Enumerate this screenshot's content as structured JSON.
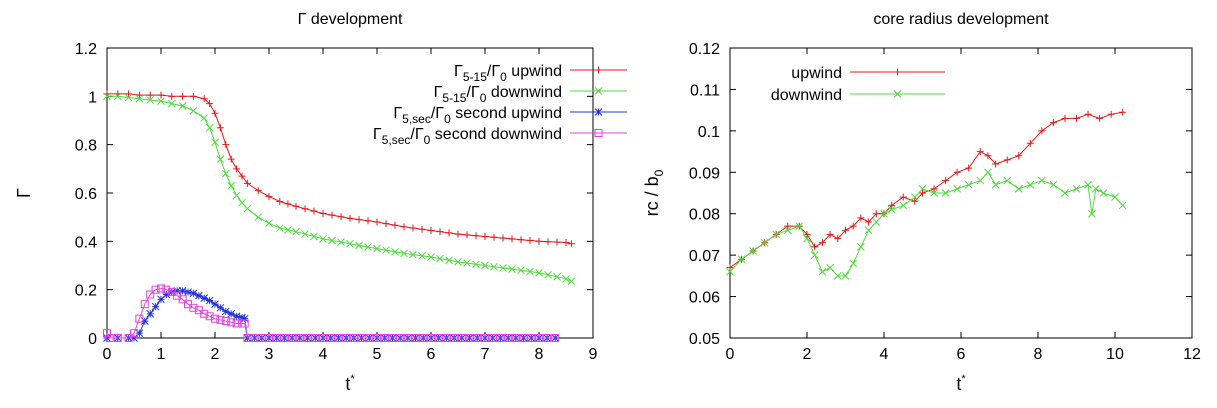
{
  "chart_data": [
    {
      "type": "line",
      "title": "Γ development",
      "xlabel": "t*",
      "ylabel": "Γ",
      "xlim": [
        0,
        9
      ],
      "ylim": [
        0,
        1.2
      ],
      "xticks": [
        "0",
        "1",
        "2",
        "3",
        "4",
        "5",
        "6",
        "7",
        "8",
        "9"
      ],
      "yticks": [
        "0",
        "0.2",
        "0.4",
        "0.6",
        "0.8",
        "1",
        "1.2"
      ],
      "legend_position": "top-right",
      "series": [
        {
          "name": "Γ5-15/Γ0 upwind",
          "name_parts": {
            "main": "Γ",
            "sub": "5-15",
            "slash": "/Γ",
            "sub2": "0",
            "suffix": " upwind"
          },
          "color": "#e41a1c",
          "marker": "plus",
          "x": [
            0,
            0.2,
            0.4,
            0.6,
            0.8,
            1.0,
            1.2,
            1.4,
            1.6,
            1.8,
            1.9,
            2.0,
            2.1,
            2.2,
            2.3,
            2.4,
            2.5,
            2.6,
            2.8,
            3.0,
            3.2,
            3.5,
            4.0,
            4.5,
            5.0,
            5.5,
            6.0,
            6.5,
            7.0,
            7.5,
            8.0,
            8.5,
            8.6
          ],
          "y": [
            1.01,
            1.01,
            1.01,
            1.005,
            1.005,
            1.005,
            1.0,
            1.0,
            1.0,
            0.99,
            0.97,
            0.93,
            0.87,
            0.8,
            0.74,
            0.7,
            0.67,
            0.64,
            0.61,
            0.585,
            0.565,
            0.545,
            0.515,
            0.495,
            0.48,
            0.46,
            0.445,
            0.43,
            0.42,
            0.41,
            0.4,
            0.395,
            0.39
          ]
        },
        {
          "name": "Γ5-15/Γ0 downwind",
          "name_parts": {
            "main": "Γ",
            "sub": "5-15",
            "slash": "/Γ",
            "sub2": "0",
            "suffix": " downwind"
          },
          "color": "#4ddd3c",
          "marker": "cross",
          "x": [
            0,
            0.2,
            0.4,
            0.6,
            0.8,
            1.0,
            1.2,
            1.4,
            1.6,
            1.8,
            1.9,
            2.0,
            2.1,
            2.2,
            2.3,
            2.4,
            2.5,
            2.6,
            2.8,
            3.0,
            3.2,
            3.5,
            4.0,
            4.5,
            5.0,
            5.5,
            6.0,
            6.5,
            7.0,
            7.5,
            8.0,
            8.5,
            8.6
          ],
          "y": [
            1.0,
            1.0,
            0.995,
            0.99,
            0.985,
            0.98,
            0.97,
            0.96,
            0.94,
            0.91,
            0.87,
            0.81,
            0.74,
            0.68,
            0.63,
            0.59,
            0.56,
            0.535,
            0.5,
            0.475,
            0.455,
            0.44,
            0.41,
            0.39,
            0.37,
            0.35,
            0.335,
            0.315,
            0.3,
            0.285,
            0.27,
            0.245,
            0.235
          ]
        },
        {
          "name": "Γ5,sec/Γ0 second upwind",
          "name_parts": {
            "main": "Γ",
            "sub": "5,sec",
            "slash": "/Γ",
            "sub2": "0",
            "suffix": " second upwind"
          },
          "color": "#2033d6",
          "marker": "star",
          "x": [
            0,
            0.2,
            0.4,
            0.5,
            0.6,
            0.7,
            0.8,
            0.9,
            1.0,
            1.1,
            1.2,
            1.3,
            1.4,
            1.5,
            1.6,
            1.7,
            1.8,
            1.9,
            2.0,
            2.1,
            2.2,
            2.3,
            2.4,
            2.5,
            2.55,
            2.6,
            3.0,
            4.0,
            5.0,
            6.0,
            7.0,
            8.0,
            8.3
          ],
          "y": [
            0.0,
            0.0,
            0.0,
            0.0,
            0.02,
            0.07,
            0.1,
            0.13,
            0.16,
            0.18,
            0.19,
            0.195,
            0.195,
            0.19,
            0.185,
            0.175,
            0.165,
            0.155,
            0.14,
            0.125,
            0.11,
            0.1,
            0.09,
            0.085,
            0.08,
            0.0,
            0.0,
            0.0,
            0.0,
            0.0,
            0.0,
            0.0,
            0.0
          ]
        },
        {
          "name": "Γ5,sec/Γ0 second downwind",
          "name_parts": {
            "main": "Γ",
            "sub": "5,sec",
            "slash": "/Γ",
            "sub2": "0",
            "suffix": " second downwind"
          },
          "color": "#e542e5",
          "marker": "square",
          "x": [
            0,
            0.05,
            0.2,
            0.4,
            0.5,
            0.6,
            0.7,
            0.8,
            0.9,
            1.0,
            1.1,
            1.2,
            1.3,
            1.4,
            1.5,
            1.6,
            1.7,
            1.8,
            1.9,
            2.0,
            2.1,
            2.2,
            2.3,
            2.4,
            2.5,
            2.55,
            2.6,
            3.0,
            4.0,
            5.0,
            6.0,
            7.0,
            8.0,
            8.3
          ],
          "y": [
            0.02,
            0.0,
            0.0,
            0.0,
            0.02,
            0.08,
            0.14,
            0.18,
            0.2,
            0.205,
            0.2,
            0.19,
            0.175,
            0.16,
            0.14,
            0.125,
            0.115,
            0.1,
            0.09,
            0.08,
            0.075,
            0.07,
            0.065,
            0.06,
            0.06,
            0.06,
            0.0,
            0.0,
            0.0,
            0.0,
            0.0,
            0.0,
            0.0,
            0.0
          ]
        }
      ]
    },
    {
      "type": "line",
      "title": "core radius development",
      "xlabel": "t*",
      "ylabel": "rc / b0",
      "ylabel_parts": {
        "main": "rc / b",
        "sub": "0"
      },
      "xlim": [
        0,
        12
      ],
      "ylim": [
        0.05,
        0.12
      ],
      "xticks": [
        "0",
        "2",
        "4",
        "6",
        "8",
        "10",
        "12"
      ],
      "yticks": [
        "0.05",
        "0.06",
        "0.07",
        "0.08",
        "0.09",
        "0.1",
        "0.11",
        "0.12"
      ],
      "legend_position": "top-left",
      "series": [
        {
          "name": "upwind",
          "color": "#e41a1c",
          "marker": "plus",
          "x": [
            0,
            0.3,
            0.6,
            0.9,
            1.2,
            1.5,
            1.8,
            2.0,
            2.2,
            2.4,
            2.6,
            2.8,
            3.0,
            3.2,
            3.4,
            3.6,
            3.8,
            4.0,
            4.2,
            4.5,
            4.8,
            5.0,
            5.3,
            5.6,
            5.9,
            6.2,
            6.5,
            6.7,
            6.9,
            7.2,
            7.5,
            7.8,
            8.1,
            8.4,
            8.7,
            9.0,
            9.3,
            9.6,
            9.9,
            10.2
          ],
          "y": [
            0.067,
            0.069,
            0.071,
            0.073,
            0.075,
            0.077,
            0.077,
            0.075,
            0.072,
            0.073,
            0.075,
            0.074,
            0.076,
            0.077,
            0.079,
            0.078,
            0.08,
            0.08,
            0.082,
            0.084,
            0.083,
            0.085,
            0.086,
            0.088,
            0.09,
            0.091,
            0.095,
            0.094,
            0.092,
            0.093,
            0.094,
            0.097,
            0.1,
            0.102,
            0.103,
            0.103,
            0.104,
            0.103,
            0.104,
            0.1045
          ]
        },
        {
          "name": "downwind",
          "color": "#4ddd3c",
          "marker": "cross",
          "x": [
            0,
            0.3,
            0.6,
            0.9,
            1.2,
            1.5,
            1.8,
            2.0,
            2.2,
            2.4,
            2.6,
            2.8,
            3.0,
            3.2,
            3.4,
            3.6,
            3.8,
            4.0,
            4.2,
            4.5,
            4.8,
            5.0,
            5.3,
            5.6,
            5.9,
            6.2,
            6.5,
            6.7,
            6.9,
            7.2,
            7.5,
            7.8,
            8.1,
            8.4,
            8.7,
            9.0,
            9.3,
            9.4,
            9.5,
            9.7,
            10.0,
            10.2
          ],
          "y": [
            0.066,
            0.069,
            0.071,
            0.073,
            0.075,
            0.076,
            0.077,
            0.074,
            0.07,
            0.066,
            0.067,
            0.065,
            0.065,
            0.068,
            0.072,
            0.076,
            0.078,
            0.08,
            0.081,
            0.082,
            0.084,
            0.086,
            0.085,
            0.085,
            0.086,
            0.087,
            0.088,
            0.09,
            0.087,
            0.088,
            0.086,
            0.087,
            0.088,
            0.087,
            0.085,
            0.086,
            0.087,
            0.08,
            0.086,
            0.085,
            0.084,
            0.082
          ]
        }
      ]
    }
  ]
}
